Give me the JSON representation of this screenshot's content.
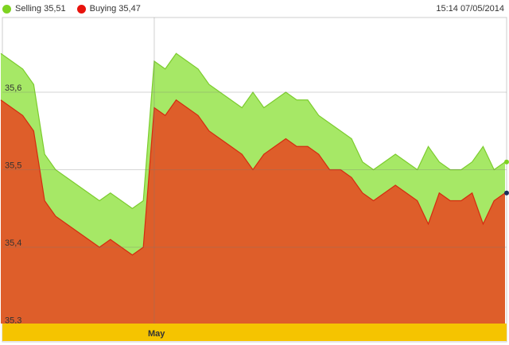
{
  "chart_data": {
    "type": "area",
    "legend_position": "top-left",
    "timestamp": "15:14 07/05/2014",
    "series": [
      {
        "name": "Selling",
        "current_label": "Selling 35,51",
        "color": "#a6e866",
        "line_color": "#7ccc2e",
        "values": [
          35.65,
          35.64,
          35.63,
          35.61,
          35.52,
          35.5,
          35.49,
          35.48,
          35.47,
          35.46,
          35.47,
          35.46,
          35.45,
          35.46,
          35.64,
          35.63,
          35.65,
          35.64,
          35.63,
          35.61,
          35.6,
          35.59,
          35.58,
          35.6,
          35.58,
          35.59,
          35.6,
          35.59,
          35.59,
          35.57,
          35.56,
          35.55,
          35.54,
          35.51,
          35.5,
          35.51,
          35.52,
          35.51,
          35.5,
          35.53,
          35.51,
          35.5,
          35.5,
          35.51,
          35.53,
          35.5,
          35.51
        ]
      },
      {
        "name": "Buying",
        "current_label": "Buying 35,47",
        "color": "#de5e2a",
        "line_color": "#d42c10",
        "values": [
          35.59,
          35.58,
          35.57,
          35.55,
          35.46,
          35.44,
          35.43,
          35.42,
          35.41,
          35.4,
          35.41,
          35.4,
          35.39,
          35.4,
          35.58,
          35.57,
          35.59,
          35.58,
          35.57,
          35.55,
          35.54,
          35.53,
          35.52,
          35.5,
          35.52,
          35.53,
          35.54,
          35.53,
          35.53,
          35.52,
          35.5,
          35.5,
          35.49,
          35.47,
          35.46,
          35.47,
          35.48,
          35.47,
          35.46,
          35.43,
          35.47,
          35.46,
          35.46,
          35.47,
          35.43,
          35.46,
          35.47
        ]
      }
    ],
    "legend_dot_colors": [
      "#7ed321",
      "#e8120c"
    ],
    "x_ticks": [
      {
        "label": "May",
        "index": 14
      }
    ],
    "y_ticks": [
      {
        "label": "35,6",
        "value": 35.6
      },
      {
        "label": "35,5",
        "value": 35.5
      },
      {
        "label": "35,4",
        "value": 35.4
      },
      {
        "label": "35,3",
        "value": 35.3
      }
    ],
    "ylim": [
      35.3,
      35.67
    ],
    "grid": true,
    "xaxis_band_color": "#f5c400"
  }
}
